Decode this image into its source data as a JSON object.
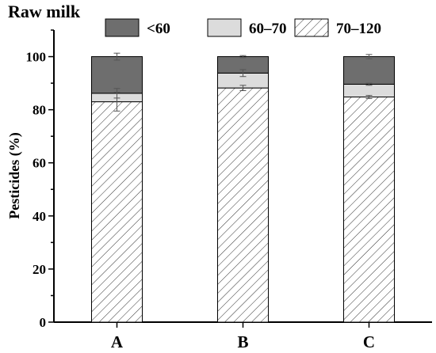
{
  "chart_data": {
    "type": "bar",
    "stacked": true,
    "title": "Raw milk",
    "xlabel": "",
    "ylabel": "Pesticides (%)",
    "ylim": [
      0,
      110
    ],
    "yticks": [
      "0",
      "20",
      "40",
      "60",
      "80",
      "100"
    ],
    "categories": [
      "A",
      "B",
      "C"
    ],
    "legend_position": "top",
    "series": [
      {
        "name": "70–120",
        "values": [
          83.0,
          88.2,
          84.8
        ],
        "errors": [
          3.5,
          1.0,
          0.6
        ],
        "fill": "hatch",
        "color": "#ffffff"
      },
      {
        "name": "60–70",
        "values": [
          3.2,
          5.6,
          4.8
        ],
        "errors": [
          1.8,
          1.3,
          0.4
        ],
        "fill": "solid",
        "color": "#dcdcdc"
      },
      {
        "name": "<60",
        "values": [
          13.8,
          6.2,
          10.4
        ],
        "errors": [
          1.3,
          0.4,
          0.8
        ],
        "fill": "solid",
        "color": "#6e6e6e"
      }
    ],
    "legend_order": [
      "<60",
      "60–70",
      "70–120"
    ]
  }
}
